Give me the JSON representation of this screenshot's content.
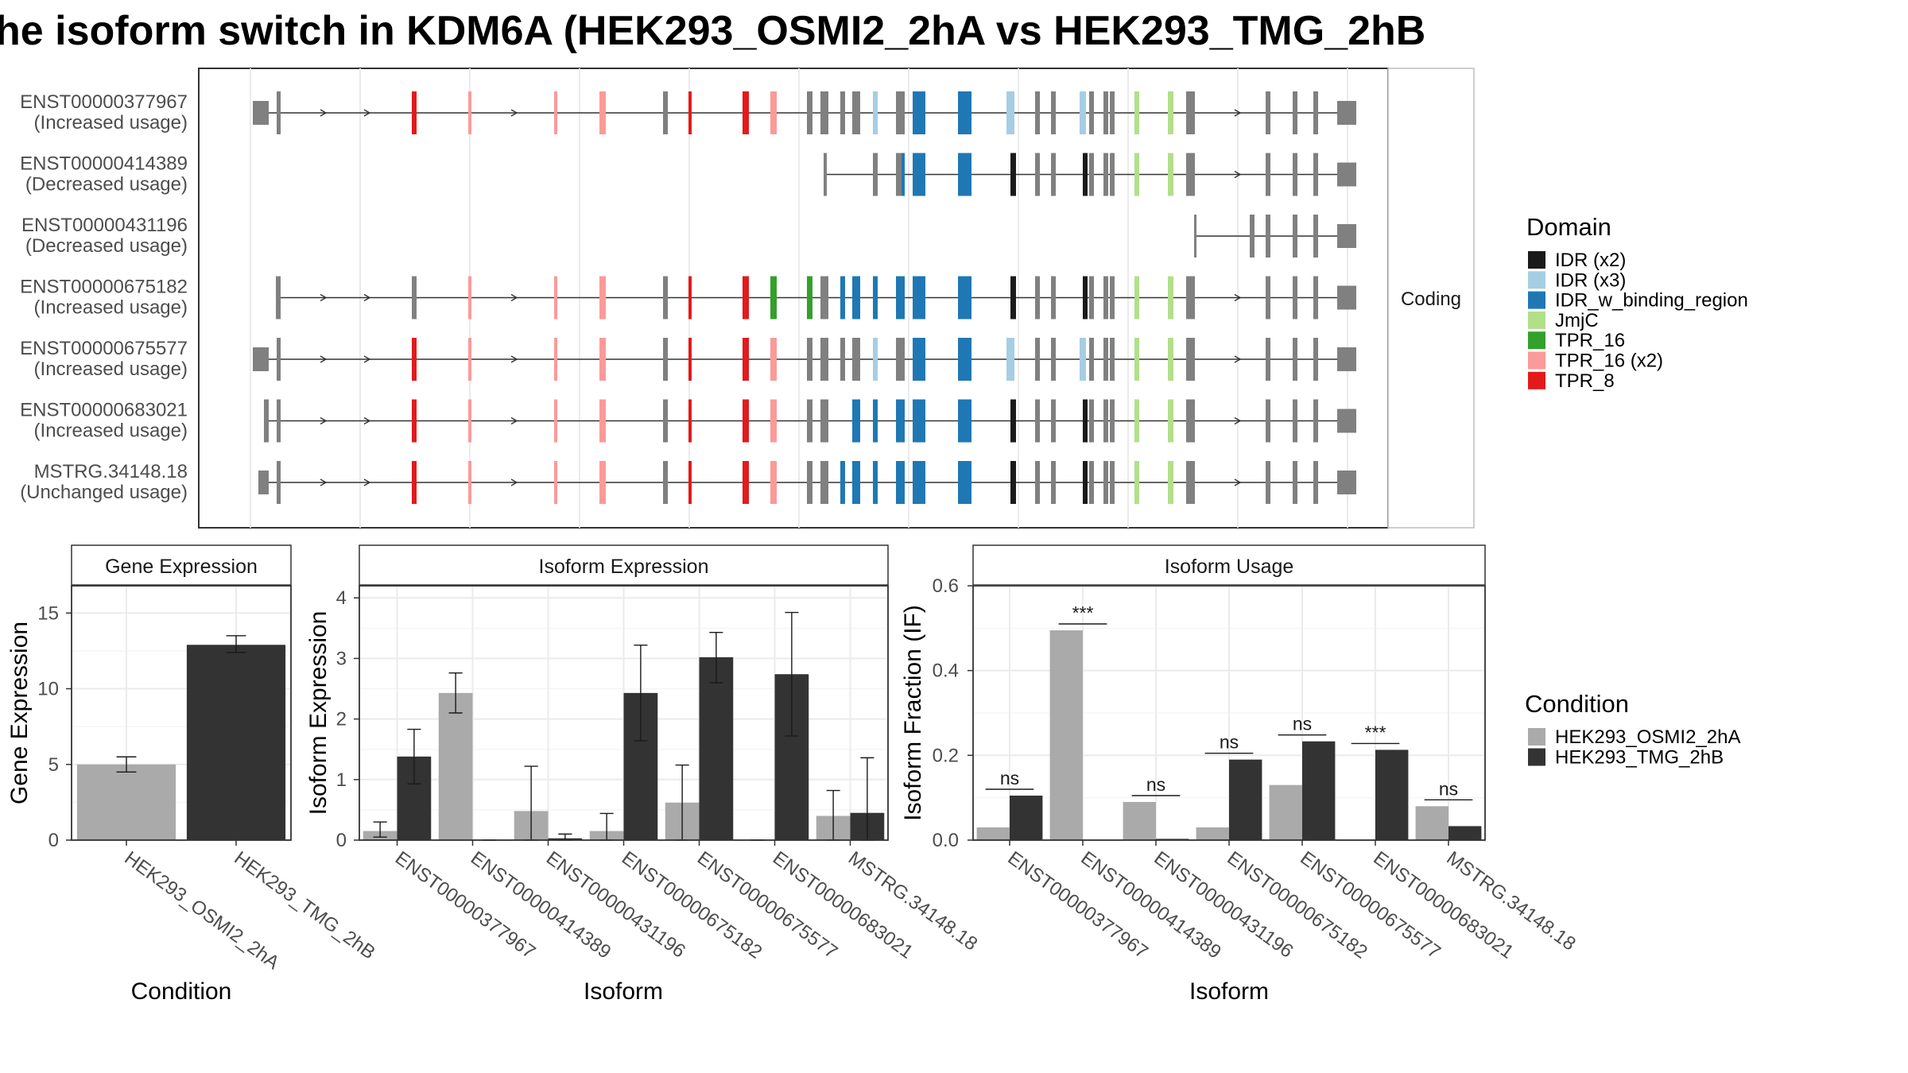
{
  "title": "he isoform switch in KDM6A (HEK293_OSMI2_2hA vs HEK293_TMG_2hB",
  "transcripts": {
    "facet_label": "Coding",
    "rows": [
      {
        "id": "ENST00000377967",
        "usage": "(Increased usage)"
      },
      {
        "id": "ENST00000414389",
        "usage": "(Decreased usage)"
      },
      {
        "id": "ENST00000431196",
        "usage": "(Decreased usage)"
      },
      {
        "id": "ENST00000675182",
        "usage": "(Increased usage)"
      },
      {
        "id": "ENST00000675577",
        "usage": "(Increased usage)"
      },
      {
        "id": "ENST00000683021",
        "usage": "(Increased usage)"
      },
      {
        "id": "MSTRG.34148.18",
        "usage": "(Unchanged usage)"
      }
    ]
  },
  "domain_legend": {
    "title": "Domain",
    "items": [
      {
        "label": "IDR (x2)",
        "color": "#1a1a1a"
      },
      {
        "label": "IDR (x3)",
        "color": "#a6cee3"
      },
      {
        "label": "IDR_w_binding_region",
        "color": "#1f78b4"
      },
      {
        "label": "JmjC",
        "color": "#b2df8a"
      },
      {
        "label": "TPR_16",
        "color": "#33a02c"
      },
      {
        "label": "TPR_16 (x2)",
        "color": "#fb9a99"
      },
      {
        "label": "TPR_8",
        "color": "#e31a1c"
      }
    ]
  },
  "condition_legend": {
    "title": "Condition",
    "items": [
      {
        "label": "HEK293_OSMI2_2hA",
        "color": "#aaaaaa"
      },
      {
        "label": "HEK293_TMG_2hB",
        "color": "#333333"
      }
    ]
  },
  "chart_data": [
    {
      "type": "bar",
      "title": "Gene Expression",
      "xlabel": "Condition",
      "ylabel": "Gene Expression",
      "ylim": [
        0,
        16.8
      ],
      "yticks": [
        0,
        5,
        10,
        15
      ],
      "categories": [
        "HEK293_OSMI2_2hA",
        "HEK293_TMG_2hB"
      ],
      "values": [
        5.0,
        12.9
      ],
      "errors": [
        [
          4.5,
          5.5
        ],
        [
          12.4,
          13.5
        ]
      ],
      "colors": [
        "#aaaaaa",
        "#333333"
      ]
    },
    {
      "type": "bar",
      "title": "Isoform Expression",
      "xlabel": "Isoform",
      "ylabel": "Isoform Expression",
      "ylim": [
        0,
        4.2
      ],
      "yticks": [
        0,
        1,
        2,
        3,
        4
      ],
      "categories": [
        "ENST00000377967",
        "ENST00000414389",
        "ENST00000431196",
        "ENST00000675182",
        "ENST00000675577",
        "ENST00000683021",
        "MSTRG.34148.18"
      ],
      "series": [
        {
          "name": "HEK293_OSMI2_2hA",
          "color": "#aaaaaa",
          "values": [
            0.15,
            2.43,
            0.48,
            0.15,
            0.62,
            0.0,
            0.4
          ],
          "errors": [
            [
              0.05,
              0.3
            ],
            [
              2.1,
              2.76
            ],
            [
              0,
              1.22
            ],
            [
              0,
              0.44
            ],
            [
              0,
              1.24
            ],
            [
              0,
              0
            ],
            [
              0,
              0.82
            ]
          ]
        },
        {
          "name": "HEK293_TMG_2hB",
          "color": "#333333",
          "values": [
            1.38,
            0.0,
            0.03,
            2.43,
            3.02,
            2.74,
            0.45
          ],
          "errors": [
            [
              0.93,
              1.83
            ],
            [
              0,
              0
            ],
            [
              0,
              0.1
            ],
            [
              1.64,
              3.22
            ],
            [
              2.6,
              3.43
            ],
            [
              1.72,
              3.76
            ],
            [
              0,
              1.36
            ]
          ]
        }
      ]
    },
    {
      "type": "bar",
      "title": "Isoform Usage",
      "xlabel": "Isoform",
      "ylabel": "Isoform Fraction (IF)",
      "ylim": [
        0,
        0.6
      ],
      "yticks": [
        0.0,
        0.2,
        0.4,
        0.6
      ],
      "ytick_labels": [
        "0.0",
        "0.2",
        "0.4",
        "0.6"
      ],
      "categories": [
        "ENST00000377967",
        "ENST00000414389",
        "ENST00000431196",
        "ENST00000675182",
        "ENST00000675577",
        "ENST00000683021",
        "MSTRG.34148.18"
      ],
      "series": [
        {
          "name": "HEK293_OSMI2_2hA",
          "color": "#aaaaaa",
          "values": [
            0.03,
            0.495,
            0.09,
            0.03,
            0.13,
            0.0,
            0.08
          ]
        },
        {
          "name": "HEK293_TMG_2hB",
          "color": "#333333",
          "values": [
            0.105,
            0.0,
            0.003,
            0.19,
            0.233,
            0.213,
            0.033
          ]
        }
      ],
      "significance": [
        "ns",
        "***",
        "ns",
        "ns",
        "ns",
        "***",
        "ns"
      ]
    }
  ]
}
